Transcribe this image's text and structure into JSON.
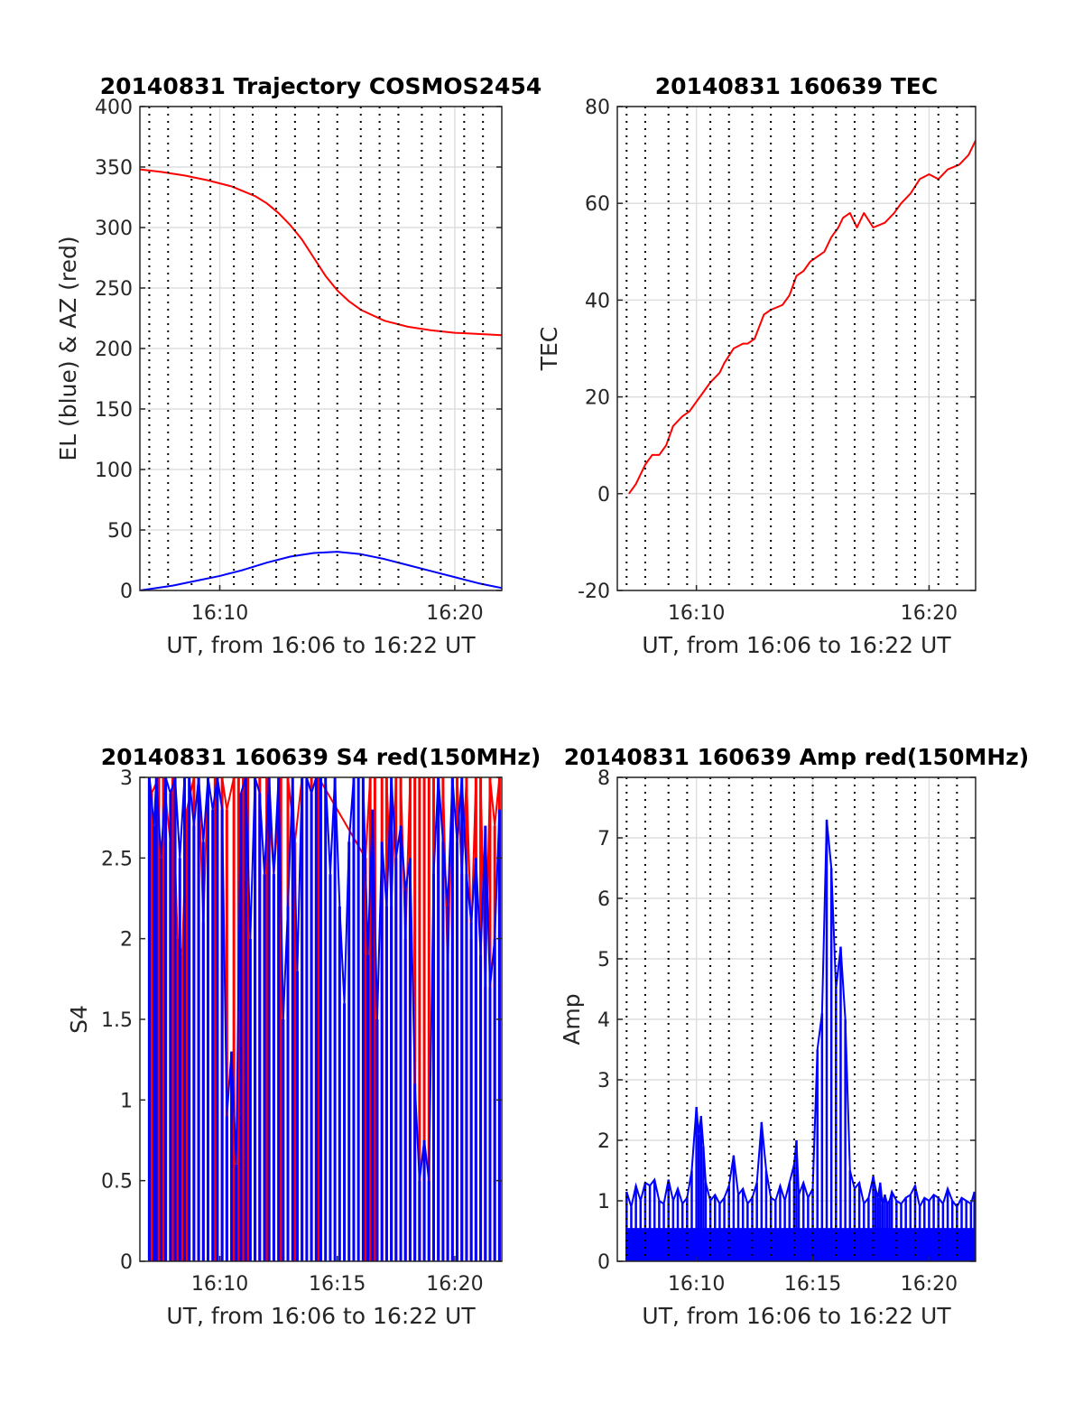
{
  "chart_data": [
    {
      "type": "line",
      "title": "20140831 Trajectory COSMOS2454",
      "xlabel": "UT, from 16:06 to 16:22 UT",
      "ylabel": "EL (blue) & AZ (red)",
      "xlim_minutes": [
        6.6,
        22.0
      ],
      "ylim": [
        0,
        400
      ],
      "yticks": [
        0,
        50,
        100,
        150,
        200,
        250,
        300,
        350,
        400
      ],
      "ytick_labels": [
        "0",
        "50",
        "100",
        "150",
        "200",
        "250",
        "300",
        "350",
        "400"
      ],
      "xticks": [
        10,
        20
      ],
      "xtick_labels": [
        "16:10",
        "16:20"
      ],
      "minor_xgrid": [
        7,
        7.8,
        8.8,
        9.6,
        10.6,
        11.4,
        12.4,
        13.2,
        14.2,
        15,
        16,
        16.8,
        17.6,
        18.6,
        19.4,
        20.4,
        21.2
      ],
      "grid": true,
      "series": [
        {
          "color": "#ff0000",
          "x": [
            6.6,
            7.5,
            8.5,
            9.5,
            10.5,
            11.5,
            12,
            12.5,
            13,
            13.5,
            14,
            14.5,
            15,
            15.5,
            16,
            17,
            18,
            19,
            20,
            21,
            22
          ],
          "y": [
            348,
            346,
            343,
            339,
            334,
            326,
            320,
            312,
            302,
            290,
            275,
            260,
            248,
            239,
            232,
            223,
            218,
            215,
            213,
            212,
            211
          ]
        },
        {
          "color": "#0000ff",
          "x": [
            6.6,
            8,
            9,
            10,
            11,
            12,
            13,
            14,
            15,
            16,
            17,
            18,
            19,
            20,
            21,
            22
          ],
          "y": [
            0,
            4,
            8,
            12,
            17,
            23,
            28,
            31,
            32,
            30,
            26,
            21,
            16,
            11,
            6,
            2
          ]
        }
      ]
    },
    {
      "type": "line",
      "title": "20140831 160639 TEC",
      "xlabel": "UT, from 16:06 to 16:22 UT",
      "ylabel": "TEC",
      "xlim_minutes": [
        6.6,
        22.0
      ],
      "ylim": [
        -20,
        80
      ],
      "yticks": [
        -20,
        0,
        20,
        40,
        60,
        80
      ],
      "ytick_labels": [
        "-20",
        "0",
        "20",
        "40",
        "60",
        "80"
      ],
      "xticks": [
        10,
        20
      ],
      "xtick_labels": [
        "16:10",
        "16:20"
      ],
      "minor_xgrid": [
        7,
        7.8,
        8.8,
        9.6,
        10.6,
        11.4,
        12.4,
        13.2,
        14.2,
        15,
        16,
        16.8,
        17.6,
        18.6,
        19.4,
        20.4,
        21.2
      ],
      "grid": true,
      "series": [
        {
          "color": "#ff0000",
          "x": [
            7.1,
            7.4,
            7.8,
            8.1,
            8.4,
            8.7,
            9,
            9.4,
            9.7,
            10,
            10.3,
            10.6,
            11,
            11.2,
            11.6,
            12,
            12.2,
            12.5,
            12.9,
            13.2,
            13.7,
            14,
            14.3,
            14.6,
            14.9,
            15.2,
            15.5,
            15.8,
            16.1,
            16.3,
            16.6,
            16.9,
            17.2,
            17.6,
            18.1,
            18.5,
            18.8,
            19.2,
            19.6,
            20,
            20.4,
            20.8,
            21.3,
            21.7,
            22
          ],
          "y": [
            0,
            2,
            6,
            8,
            8,
            10,
            14,
            16,
            17,
            19,
            21,
            23,
            25,
            27,
            30,
            31,
            31,
            32,
            37,
            38,
            39,
            41,
            45,
            46,
            48,
            49,
            50,
            53,
            55,
            57,
            58,
            55,
            58,
            55,
            56,
            58,
            60,
            62,
            65,
            66,
            65,
            67,
            68,
            70,
            73
          ]
        }
      ]
    },
    {
      "type": "bar",
      "title": "20140831 160639 S4 red(150MHz)",
      "xlabel": "UT, from 16:06 to 16:22 UT",
      "ylabel": "S4",
      "xlim_minutes": [
        6.6,
        22.0
      ],
      "ylim": [
        0,
        3
      ],
      "yticks": [
        0,
        0.5,
        1,
        1.5,
        2,
        2.5,
        3
      ],
      "ytick_labels": [
        "0",
        "0.5",
        "1",
        "1.5",
        "2",
        "2.5",
        "3"
      ],
      "xticks": [
        10,
        15,
        20
      ],
      "xtick_labels": [
        "16:10",
        "16:15",
        "16:20"
      ],
      "grid": false,
      "series": [
        {
          "color": "#ff0000",
          "x": [
            7.0,
            7.1,
            7.4,
            7.6,
            7.9,
            8.0,
            8.2,
            8.4,
            8.6,
            8.9,
            9.1,
            9.3,
            9.5,
            9.8,
            10.1,
            10.3,
            10.6,
            10.8,
            11.0,
            11.2,
            11.5,
            11.7,
            12.0,
            12.3,
            12.6,
            12.9,
            13.2,
            13.5,
            13.9,
            14.2,
            16.2,
            16.4,
            16.6,
            16.9,
            17.1,
            17.3,
            17.5,
            17.7,
            17.9,
            18.1,
            18.3,
            18.5,
            18.7,
            18.9,
            19.1,
            19.3,
            19.5,
            19.7,
            19.9,
            20.1,
            20.3,
            20.5,
            20.7,
            20.9,
            21.1,
            21.3,
            21.5,
            21.7,
            21.9
          ],
          "y": [
            3,
            2.9,
            3,
            3,
            2.6,
            3,
            2.0,
            1.9,
            2.8,
            3,
            3,
            2.1,
            3,
            3,
            3,
            2.8,
            3,
            3,
            3,
            3,
            3,
            3,
            3,
            2.4,
            3,
            3,
            2.6,
            3,
            3,
            3,
            2.5,
            3,
            3,
            3,
            3,
            2.2,
            3,
            3,
            2.0,
            3,
            3,
            3,
            3,
            3,
            3,
            3,
            3,
            1.8,
            3,
            3,
            2.4,
            3,
            2.0,
            3,
            3,
            1.7,
            3,
            2.7,
            3
          ]
        },
        {
          "color": "#0000ff",
          "x": [
            7.0,
            7.2,
            7.3,
            7.5,
            7.7,
            7.9,
            8.1,
            8.3,
            8.5,
            8.7,
            8.9,
            9.1,
            9.3,
            9.5,
            9.7,
            9.9,
            10.1,
            10.3,
            10.5,
            10.7,
            10.9,
            11.1,
            11.3,
            11.5,
            11.7,
            11.9,
            12.1,
            12.3,
            12.5,
            12.7,
            12.9,
            13.1,
            13.3,
            13.5,
            13.7,
            13.9,
            14.1,
            14.3,
            14.5,
            14.7,
            14.9,
            15.1,
            15.3,
            15.5,
            15.7,
            15.9,
            16.1,
            16.3,
            16.5,
            16.7,
            16.9,
            17.1,
            17.3,
            17.5,
            17.7,
            17.9,
            18.1,
            18.3,
            18.5,
            18.7,
            18.9,
            19.1,
            19.3,
            19.5,
            19.7,
            19.9,
            20.1,
            20.3,
            20.5,
            20.7,
            20.9,
            21.1,
            21.3,
            21.5,
            21.7,
            21.9
          ],
          "y": [
            3,
            2.7,
            3,
            2.5,
            3,
            2.9,
            3,
            2.5,
            3,
            3,
            2.7,
            3,
            2.6,
            3,
            2.8,
            3,
            2.8,
            0.9,
            1.3,
            0.6,
            2.9,
            3,
            2.0,
            3,
            2.9,
            2.4,
            3,
            2.4,
            3,
            1.5,
            2.2,
            3,
            1.8,
            3,
            3,
            2.9,
            3,
            3,
            3,
            2.4,
            3,
            2.2,
            1.6,
            2.6,
            3,
            3,
            3,
            1.9,
            2.8,
            1.5,
            2.6,
            2.2,
            3,
            2.5,
            2.7,
            2.3,
            2.5,
            1.1,
            0.5,
            0.75,
            0.5,
            2.4,
            3,
            2.6,
            2.2,
            3,
            2.6,
            3,
            2.4,
            2.1,
            2.5,
            1.9,
            2.7,
            1.7,
            2.0,
            2.8
          ]
        }
      ]
    },
    {
      "type": "bar",
      "title": "20140831 160639 Amp red(150MHz)",
      "xlabel": "UT, from 16:06 to 16:22 UT",
      "ylabel": "Amp",
      "xlim_minutes": [
        6.6,
        22.0
      ],
      "ylim": [
        0,
        8
      ],
      "yticks": [
        0,
        1,
        2,
        3,
        4,
        5,
        6,
        7,
        8
      ],
      "ytick_labels": [
        "0",
        "1",
        "2",
        "3",
        "4",
        "5",
        "6",
        "7",
        "8"
      ],
      "xticks": [
        10,
        15,
        20
      ],
      "xtick_labels": [
        "16:10",
        "16:15",
        "16:20"
      ],
      "minor_xgrid": [
        7,
        7.8,
        8.8,
        9.6,
        10.6,
        11.4,
        12.4,
        13.2,
        14.2,
        15,
        16,
        16.8,
        17.6,
        18.6,
        19.4,
        20.4,
        21.2
      ],
      "grid": true,
      "series": [
        {
          "color": "#0000ff",
          "x": [
            7.0,
            7.2,
            7.4,
            7.6,
            7.8,
            8.0,
            8.2,
            8.4,
            8.6,
            8.8,
            9.0,
            9.2,
            9.4,
            9.6,
            9.8,
            10.0,
            10.1,
            10.2,
            10.3,
            10.4,
            10.6,
            10.8,
            11.0,
            11.2,
            11.4,
            11.6,
            11.8,
            12.0,
            12.2,
            12.4,
            12.6,
            12.8,
            13.0,
            13.2,
            13.4,
            13.6,
            13.8,
            14.0,
            14.2,
            14.3,
            14.4,
            14.6,
            14.8,
            15.0,
            15.2,
            15.4,
            15.6,
            15.8,
            16.0,
            16.2,
            16.4,
            16.6,
            16.8,
            17.0,
            17.2,
            17.4,
            17.6,
            17.7,
            17.8,
            17.9,
            18.0,
            18.1,
            18.2,
            18.3,
            18.4,
            18.6,
            18.8,
            19.0,
            19.2,
            19.4,
            19.6,
            19.8,
            20.0,
            20.2,
            20.4,
            20.6,
            20.8,
            21.0,
            21.2,
            21.4,
            21.6,
            21.8,
            21.95
          ],
          "y": [
            1.15,
            0.9,
            1.25,
            1.0,
            1.3,
            1.25,
            1.35,
            1.0,
            0.95,
            1.35,
            1.0,
            1.2,
            0.95,
            1.05,
            1.5,
            2.55,
            2.1,
            2.4,
            1.9,
            1.3,
            1.0,
            1.1,
            0.95,
            1.05,
            1.25,
            1.75,
            1.1,
            1.2,
            0.95,
            1.05,
            1.3,
            2.3,
            1.5,
            1.05,
            1.0,
            1.25,
            1.0,
            1.3,
            1.6,
            2.0,
            1.1,
            1.3,
            1.05,
            1.2,
            3.5,
            4.1,
            7.3,
            6.5,
            4.5,
            5.2,
            4.0,
            1.5,
            1.2,
            1.3,
            0.95,
            1.05,
            1.4,
            1.2,
            1.05,
            1.3,
            0.95,
            1.1,
            0.95,
            1.0,
            1.15,
            1.0,
            0.95,
            1.05,
            1.1,
            1.25,
            0.9,
            1.05,
            1.0,
            1.1,
            1.05,
            0.95,
            1.2,
            1.0,
            0.9,
            1.05,
            1.0,
            0.95,
            1.15
          ]
        }
      ]
    }
  ]
}
